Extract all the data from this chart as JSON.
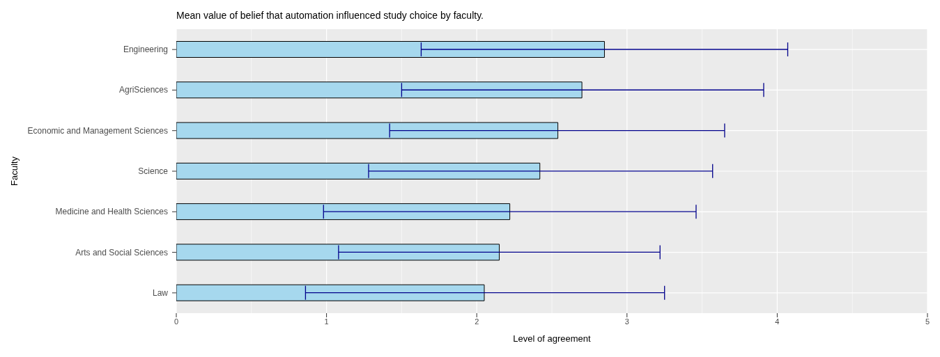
{
  "chart_data": {
    "type": "bar",
    "orientation": "horizontal",
    "title": "Mean value of belief that automation influenced study choice by faculty.",
    "xlabel": "Level of agreement",
    "ylabel": "Faculty",
    "categories": [
      "Engineering",
      "AgriSciences",
      "Economic and Management Sciences",
      "Science",
      "Medicine and Health Sciences",
      "Arts and Social Sciences",
      "Law"
    ],
    "values": [
      2.85,
      2.7,
      2.54,
      2.42,
      2.22,
      2.15,
      2.05
    ],
    "errors": [
      [
        1.63,
        4.07
      ],
      [
        1.5,
        3.91
      ],
      [
        1.42,
        3.65
      ],
      [
        1.28,
        3.57
      ],
      [
        0.98,
        3.46
      ],
      [
        1.08,
        3.22
      ],
      [
        0.86,
        3.25
      ]
    ],
    "color": "#a6d8ee",
    "xlim": [
      0,
      5
    ],
    "xticks": [
      0,
      1,
      2,
      3,
      4,
      5
    ],
    "grid": true
  }
}
